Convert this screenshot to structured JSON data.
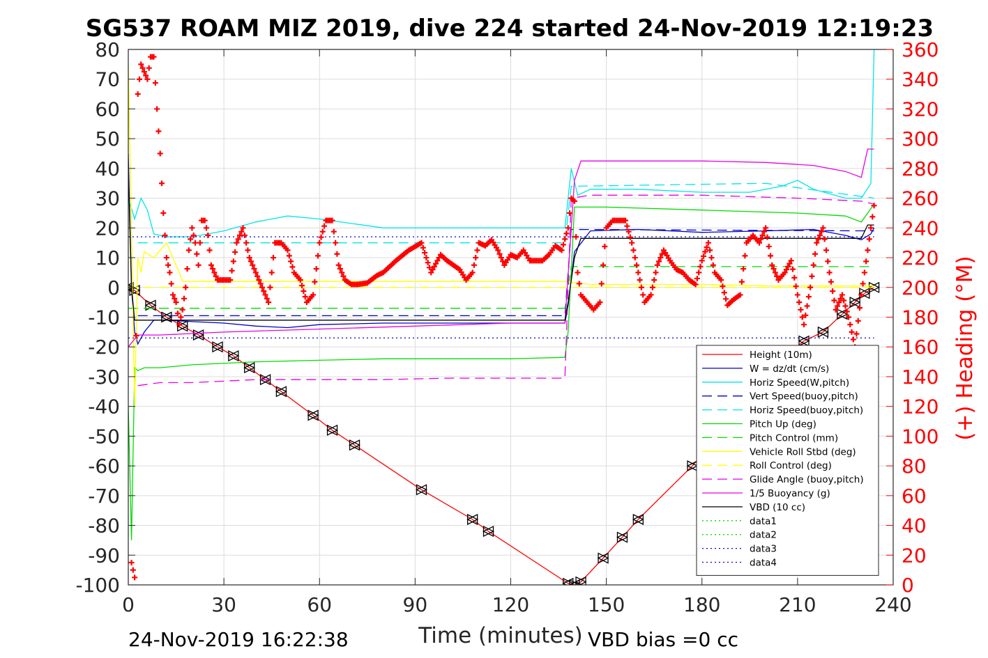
{
  "footer": {
    "timestamp": "24-Nov-2019 16:22:38",
    "vbd_bias": "VBD bias =0 cc"
  },
  "chart_data": {
    "type": "line",
    "title": "SG537 ROAM MIZ 2019, dive 224 started 24-Nov-2019 12:19:23",
    "xlabel": "Time (minutes)",
    "ylabel": "",
    "y2label": "(+) Heading (°M)",
    "xlim": [
      0,
      240
    ],
    "ylim": [
      -100,
      80
    ],
    "y2lim": [
      0,
      360
    ],
    "xticks": [
      0,
      30,
      60,
      90,
      120,
      150,
      180,
      210,
      240
    ],
    "yticks": [
      80,
      70,
      60,
      50,
      40,
      30,
      20,
      10,
      0,
      -10,
      -20,
      -30,
      -40,
      -50,
      -60,
      -70,
      -80,
      -90,
      -100
    ],
    "y2ticks": [
      360,
      340,
      320,
      300,
      280,
      260,
      240,
      220,
      200,
      180,
      160,
      140,
      120,
      100,
      80,
      60,
      40,
      20,
      0
    ],
    "grid": true,
    "legend_position": "bottom-right",
    "series": [
      {
        "name": "Height (10m)",
        "color": "#ff0000",
        "style": "solid",
        "marker": "triangle",
        "x": [
          0,
          2,
          7,
          12,
          17,
          22,
          28,
          33,
          38,
          43,
          48,
          58,
          64,
          71,
          92,
          108,
          113,
          138,
          140,
          142,
          149,
          155,
          160,
          177,
          185,
          192,
          203,
          212,
          218,
          224,
          228,
          231,
          234
        ],
        "y": [
          0,
          -1,
          -6,
          -10,
          -13,
          -16,
          -20,
          -23,
          -27,
          -31,
          -35,
          -43,
          -48,
          -53,
          -68,
          -78,
          -82,
          -99.5,
          -100,
          -99,
          -91,
          -84,
          -78,
          -60,
          -50,
          -40,
          -26,
          -18,
          -15,
          -9,
          -5,
          -2,
          0
        ]
      },
      {
        "name": "W = dz/dt (cm/s)",
        "color": "#0000c8",
        "style": "solid",
        "x": [
          0,
          1,
          2,
          3,
          5,
          8,
          12,
          20,
          30,
          40,
          50,
          60,
          80,
          100,
          120,
          137,
          138,
          140,
          145,
          160,
          180,
          200,
          215,
          225,
          230,
          233,
          234
        ],
        "y": [
          45,
          0,
          -15,
          -19,
          -15,
          -11,
          -11,
          -11.5,
          -12,
          -13,
          -13.5,
          -12.5,
          -12,
          -12,
          -12,
          -12,
          -6,
          12,
          19,
          19.5,
          18.5,
          19,
          19.5,
          17.5,
          16,
          18,
          20
        ]
      },
      {
        "name": "Horiz Speed(W,pitch)",
        "color": "#00e6e6",
        "style": "solid",
        "x": [
          0,
          2,
          4,
          6,
          8,
          12,
          20,
          30,
          40,
          50,
          60,
          80,
          100,
          120,
          137,
          138,
          139,
          141,
          145,
          160,
          180,
          195,
          205,
          210,
          215,
          225,
          230,
          233,
          234
        ],
        "y": [
          30,
          23,
          30,
          26,
          18,
          17,
          17,
          19,
          22,
          24,
          23,
          20,
          20,
          20,
          20,
          30,
          40,
          31,
          33,
          33,
          32,
          32,
          34,
          36,
          33,
          30,
          30,
          35,
          80
        ]
      },
      {
        "name": "Vert Speed(buoy,pitch)",
        "color": "#0000c8",
        "style": "dashed",
        "x": [
          3,
          137,
          139,
          234
        ],
        "y": [
          -9.5,
          -9.5,
          19.5,
          19
        ]
      },
      {
        "name": "Horiz Speed(buoy,pitch)",
        "color": "#00e6e6",
        "style": "dashed",
        "x": [
          3,
          137,
          139,
          200,
          234
        ],
        "y": [
          15,
          15,
          34,
          35,
          30
        ]
      },
      {
        "name": "Pitch Up (deg)",
        "color": "#00dc00",
        "style": "solid",
        "x": [
          0,
          1,
          2,
          3,
          5,
          10,
          20,
          40,
          60,
          80,
          100,
          120,
          137,
          138,
          140,
          150,
          180,
          210,
          225,
          230,
          234
        ],
        "y": [
          -40,
          -85,
          -27,
          -28,
          -27,
          -27,
          -26,
          -25,
          -24.5,
          -24,
          -24,
          -24,
          -23.5,
          -15,
          27,
          27,
          26,
          25,
          24,
          22,
          28
        ]
      },
      {
        "name": "Pitch Control (mm)",
        "color": "#00dc00",
        "style": "dashed",
        "x": [
          0,
          137,
          139,
          234
        ],
        "y": [
          -7,
          -7,
          7,
          7
        ]
      },
      {
        "name": "Vehicle Roll Stbd (deg)",
        "color": "#ffff00",
        "style": "solid",
        "x": [
          0,
          1,
          2,
          3,
          4,
          5,
          8,
          12,
          16,
          17,
          18,
          30,
          45,
          60,
          80,
          100,
          120,
          137,
          145,
          160,
          180,
          200,
          220,
          234
        ],
        "y": [
          75,
          20,
          -40,
          10,
          5,
          12,
          10,
          15,
          5,
          2,
          2,
          2,
          2,
          2,
          2,
          2,
          2,
          2,
          1,
          1,
          1,
          0.5,
          0.5,
          0.5
        ]
      },
      {
        "name": "Roll Control (deg)",
        "color": "#ffff00",
        "style": "dashed",
        "x": [
          0,
          234
        ],
        "y": [
          0,
          0
        ]
      },
      {
        "name": "Glide Angle (buoy,pitch)",
        "color": "#e600e6",
        "style": "dashed",
        "x": [
          3,
          10,
          20,
          40,
          60,
          80,
          100,
          120,
          137,
          139,
          145,
          180,
          210,
          230,
          234
        ],
        "y": [
          -33,
          -32,
          -32,
          -31,
          -31,
          -31,
          -30.5,
          -30.5,
          -30.5,
          30,
          31,
          31,
          30,
          29,
          28
        ]
      },
      {
        "name": "1/5 Buoyancy (g)",
        "color": "#e600e6",
        "style": "solid",
        "x": [
          0,
          3,
          10,
          30,
          60,
          90,
          120,
          137,
          140,
          142,
          160,
          180,
          200,
          215,
          225,
          230,
          232,
          234
        ],
        "y": [
          -20,
          -16,
          -16,
          -15,
          -14,
          -13,
          -12,
          -12,
          36,
          42.5,
          42.5,
          42.5,
          42,
          41,
          39,
          37,
          46.5,
          46.5
        ]
      },
      {
        "name": "VBD (10 cc)",
        "color": "#000000",
        "style": "solid",
        "x": [
          0,
          1,
          2,
          10,
          30,
          60,
          90,
          120,
          137,
          138,
          140,
          142,
          160,
          200,
          230,
          232,
          234
        ],
        "y": [
          40,
          0,
          -11,
          -11,
          -11,
          -11,
          -11,
          -11,
          -11,
          -5,
          10,
          16.5,
          16.5,
          16.5,
          16.5,
          21,
          21
        ]
      },
      {
        "name": "data1",
        "color": "#00dc00",
        "style": "dotted",
        "x": [],
        "y": []
      },
      {
        "name": "data2",
        "color": "#00dc00",
        "style": "dotted",
        "x": [],
        "y": []
      },
      {
        "name": "data3",
        "color": "#0000c8",
        "style": "dotted",
        "x": [
          0,
          234
        ],
        "y": [
          17,
          17
        ]
      },
      {
        "name": "data4",
        "color": "#0000c8",
        "style": "dotted",
        "x": [
          0,
          234
        ],
        "y": [
          -17,
          -17
        ]
      }
    ],
    "heading": {
      "marker": "+",
      "color": "#ff0000",
      "x": [
        1,
        2,
        3,
        4,
        5,
        6,
        7,
        8,
        9,
        10,
        11,
        12,
        13,
        14,
        15,
        16,
        17,
        18,
        19,
        20,
        21,
        22,
        23,
        24,
        25,
        26,
        28,
        30,
        32,
        34,
        36,
        38,
        40,
        42,
        44,
        46,
        48,
        50,
        52,
        54,
        56,
        58,
        60,
        62,
        64,
        66,
        68,
        70,
        72,
        75,
        78,
        80,
        84,
        88,
        92,
        95,
        98,
        100,
        102,
        104,
        106,
        108,
        110,
        112,
        114,
        116,
        118,
        120,
        122,
        124,
        126,
        128,
        130,
        132,
        134,
        136,
        138,
        139,
        140,
        141,
        142,
        144,
        146,
        148,
        150,
        152,
        154,
        156,
        158,
        160,
        162,
        164,
        166,
        168,
        170,
        172,
        174,
        176,
        178,
        180,
        182,
        184,
        186,
        188,
        190,
        192,
        194,
        196,
        198,
        200,
        202,
        204,
        206,
        208,
        210,
        212,
        214,
        216,
        218,
        220,
        222,
        224,
        226,
        228,
        230,
        232,
        234
      ],
      "y": [
        15,
        5,
        330,
        350,
        345,
        340,
        355,
        355,
        320,
        290,
        250,
        220,
        210,
        195,
        190,
        175,
        185,
        200,
        225,
        240,
        230,
        215,
        245,
        245,
        235,
        215,
        205,
        205,
        205,
        230,
        240,
        220,
        210,
        200,
        190,
        230,
        230,
        225,
        210,
        205,
        190,
        195,
        230,
        245,
        245,
        215,
        205,
        202,
        202,
        203,
        208,
        210,
        218,
        225,
        230,
        210,
        222,
        218,
        215,
        212,
        205,
        210,
        230,
        228,
        232,
        225,
        215,
        222,
        220,
        225,
        218,
        218,
        218,
        222,
        228,
        225,
        240,
        260,
        258,
        210,
        195,
        190,
        185,
        190,
        240,
        245,
        245,
        245,
        230,
        210,
        190,
        195,
        215,
        225,
        218,
        212,
        210,
        205,
        202,
        218,
        230,
        210,
        205,
        188,
        192,
        195,
        230,
        235,
        230,
        240,
        215,
        205,
        210,
        218,
        195,
        175,
        200,
        230,
        240,
        210,
        185,
        195,
        180,
        160,
        195,
        225,
        255
      ]
    }
  }
}
